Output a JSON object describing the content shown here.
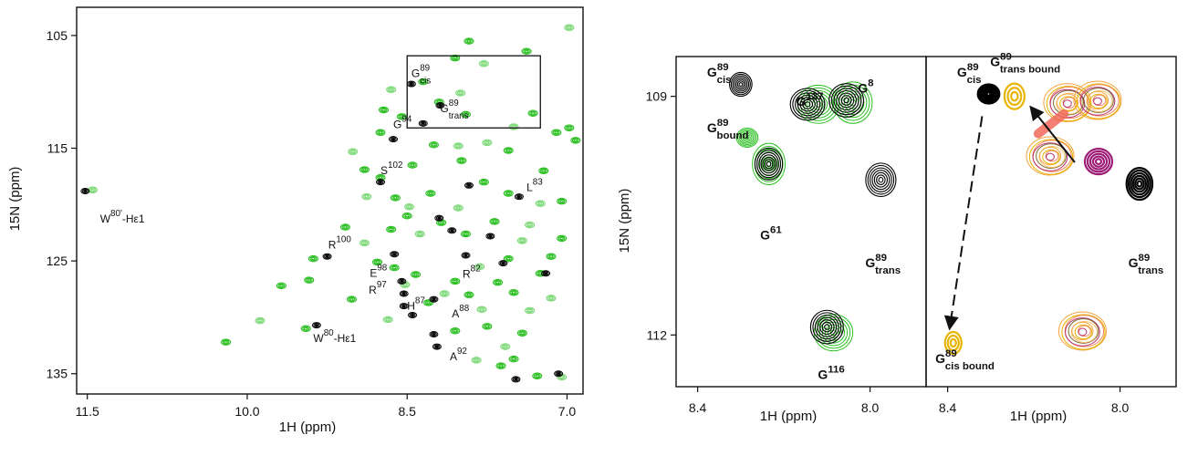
{
  "colors": {
    "free": "#000000",
    "bound": "#2bbf22",
    "bound_light": "#7fd97a",
    "trans_bound": "#e8b400",
    "cis_bound": "#e8b400",
    "magenta": "#9c1c74",
    "salmon": "#f26b5b",
    "orange": "#f4a340"
  },
  "chart_data": [
    {
      "type": "scatter",
      "panel": "left",
      "xlabel": "1H (ppm)",
      "ylabel": "15N (ppm)",
      "xlim": [
        11.6,
        6.85
      ],
      "ylim": [
        102.5,
        136.8
      ],
      "x_ticks": [
        {
          "value": 11.5,
          "label": "11.5"
        },
        {
          "value": 10.0,
          "label": "10.0"
        },
        {
          "value": 8.5,
          "label": "8.5"
        },
        {
          "value": 7.0,
          "label": "7.0"
        }
      ],
      "y_ticks": [
        {
          "value": 105,
          "label": "105"
        },
        {
          "value": 115,
          "label": "115"
        },
        {
          "value": 125,
          "label": "125"
        },
        {
          "value": 135,
          "label": "135"
        }
      ],
      "inset_box": {
        "x": [
          8.5,
          7.25
        ],
        "y": [
          106.8,
          113.2
        ]
      },
      "annotations": [
        {
          "res": "G",
          "sup": "89",
          "sub": "cis",
          "x": 8.46,
          "y": 108.7
        },
        {
          "res": "G",
          "sup": "89",
          "sub": "trans",
          "x": 8.19,
          "y": 111.8
        },
        {
          "res": "G",
          "sup": "94",
          "x": 8.63,
          "y": 113.2
        },
        {
          "res": "S",
          "sup": "102",
          "x": 8.75,
          "y": 117.3
        },
        {
          "res": "L",
          "sup": "83",
          "x": 7.38,
          "y": 118.8
        },
        {
          "res": "W",
          "sup": "80'",
          "post": "-Hε1",
          "x": 11.38,
          "y": 121.6
        },
        {
          "res": "R",
          "sup": "100",
          "x": 9.24,
          "y": 123.9
        },
        {
          "res": "E",
          "sup": "98",
          "x": 8.85,
          "y": 126.4
        },
        {
          "res": "R",
          "sup": "97",
          "x": 8.86,
          "y": 127.9
        },
        {
          "res": "H",
          "sup": "87",
          "x": 8.5,
          "y": 129.3
        },
        {
          "res": "R",
          "sup": "82",
          "x": 7.98,
          "y": 126.5
        },
        {
          "res": "A",
          "sup": "88",
          "x": 8.08,
          "y": 130.0
        },
        {
          "res": "W",
          "sup": "80",
          "post": "-Hε1",
          "x": 9.38,
          "y": 132.2
        },
        {
          "res": "A",
          "sup": "92",
          "x": 8.1,
          "y": 133.8
        }
      ],
      "free_peaks": [
        [
          8.46,
          109.3
        ],
        [
          8.19,
          111.2
        ],
        [
          8.35,
          112.8
        ],
        [
          8.63,
          114.2
        ],
        [
          8.75,
          118.0
        ],
        [
          7.92,
          118.3
        ],
        [
          7.45,
          119.3
        ],
        [
          11.52,
          118.8
        ],
        [
          9.25,
          124.6
        ],
        [
          8.62,
          124.4
        ],
        [
          8.55,
          126.8
        ],
        [
          8.53,
          127.9
        ],
        [
          8.53,
          129.0
        ],
        [
          8.45,
          129.8
        ],
        [
          8.25,
          128.4
        ],
        [
          9.35,
          130.7
        ],
        [
          8.25,
          131.5
        ],
        [
          8.22,
          132.6
        ],
        [
          7.6,
          125.2
        ],
        [
          7.2,
          126.1
        ],
        [
          7.08,
          135.0
        ],
        [
          7.48,
          135.5
        ],
        [
          8.08,
          122.3
        ],
        [
          7.72,
          122.8
        ],
        [
          7.95,
          124.5
        ],
        [
          8.2,
          121.2
        ]
      ],
      "bound_peaks": [
        [
          6.98,
          104.3
        ],
        [
          7.92,
          105.5
        ],
        [
          7.38,
          106.4
        ],
        [
          7.78,
          107.5
        ],
        [
          8.05,
          107.0
        ],
        [
          8.35,
          109.1
        ],
        [
          8.0,
          110.1
        ],
        [
          8.2,
          110.9
        ],
        [
          7.95,
          112.0
        ],
        [
          7.5,
          113.1
        ],
        [
          7.32,
          111.9
        ],
        [
          7.1,
          113.6
        ],
        [
          8.65,
          109.8
        ],
        [
          8.55,
          112.2
        ],
        [
          8.75,
          113.6
        ],
        [
          9.01,
          115.3
        ],
        [
          8.9,
          116.9
        ],
        [
          8.25,
          114.7
        ],
        [
          8.02,
          114.8
        ],
        [
          8.75,
          117.6
        ],
        [
          8.61,
          119.4
        ],
        [
          8.48,
          120.2
        ],
        [
          8.28,
          119.0
        ],
        [
          7.99,
          116.1
        ],
        [
          7.75,
          114.5
        ],
        [
          7.55,
          115.2
        ],
        [
          7.22,
          117.0
        ],
        [
          11.45,
          118.7
        ],
        [
          9.38,
          124.8
        ],
        [
          9.08,
          122.0
        ],
        [
          8.9,
          123.4
        ],
        [
          8.78,
          125.1
        ],
        [
          8.62,
          125.6
        ],
        [
          8.52,
          127.1
        ],
        [
          8.42,
          126.2
        ],
        [
          8.3,
          128.7
        ],
        [
          8.15,
          127.9
        ],
        [
          8.05,
          126.8
        ],
        [
          7.92,
          128.0
        ],
        [
          7.8,
          129.3
        ],
        [
          7.65,
          126.9
        ],
        [
          7.5,
          127.8
        ],
        [
          7.35,
          129.4
        ],
        [
          7.25,
          126.1
        ],
        [
          7.55,
          124.8
        ],
        [
          7.42,
          123.2
        ],
        [
          7.15,
          124.6
        ],
        [
          7.05,
          123.0
        ],
        [
          7.82,
          125.5
        ],
        [
          7.95,
          122.6
        ],
        [
          7.68,
          121.5
        ],
        [
          7.25,
          119.9
        ],
        [
          7.05,
          119.7
        ],
        [
          8.18,
          121.6
        ],
        [
          8.38,
          122.6
        ],
        [
          8.5,
          121.0
        ],
        [
          8.65,
          122.2
        ],
        [
          8.02,
          120.3
        ],
        [
          7.78,
          118.0
        ],
        [
          7.55,
          119.0
        ],
        [
          7.35,
          121.8
        ],
        [
          9.45,
          131.0
        ],
        [
          10.2,
          132.2
        ],
        [
          9.88,
          130.3
        ],
        [
          9.42,
          126.7
        ],
        [
          9.02,
          128.4
        ],
        [
          8.68,
          130.2
        ],
        [
          8.05,
          131.2
        ],
        [
          7.75,
          130.8
        ],
        [
          7.58,
          132.6
        ],
        [
          7.5,
          133.7
        ],
        [
          7.28,
          135.2
        ],
        [
          7.05,
          135.3
        ],
        [
          6.98,
          113.2
        ],
        [
          6.92,
          114.3
        ],
        [
          7.15,
          128.3
        ],
        [
          7.42,
          131.4
        ],
        [
          9.68,
          127.2
        ],
        [
          8.88,
          119.3
        ],
        [
          8.45,
          116.5
        ],
        [
          8.72,
          111.6
        ],
        [
          7.85,
          133.8
        ],
        [
          7.62,
          134.3
        ]
      ]
    },
    {
      "type": "scatter",
      "panel": "middle",
      "xlabel": "1H (ppm)",
      "ylabel": "15N (ppm)",
      "xlim": [
        8.45,
        7.87
      ],
      "ylim": [
        108.5,
        112.65
      ],
      "x_ticks": [
        {
          "value": 8.4,
          "label": "8.4"
        },
        {
          "value": 8.0,
          "label": "8.0"
        }
      ],
      "y_ticks": [
        {
          "value": 109,
          "label": "109"
        },
        {
          "value": 112,
          "label": "112"
        }
      ],
      "annotations": [
        {
          "res": "G",
          "sup": "89",
          "sub": "cis",
          "x": 8.35,
          "y": 108.75,
          "color": "free"
        },
        {
          "res": "G",
          "sup": "137",
          "x": 8.14,
          "y": 109.12,
          "color": "free"
        },
        {
          "res": "G",
          "sup": "8",
          "x": 8.01,
          "y": 108.95,
          "color": "free"
        },
        {
          "res": "G",
          "sup": "89",
          "sub": "bound",
          "x": 8.33,
          "y": 109.45,
          "color": "bound"
        },
        {
          "res": "G",
          "sup": "61",
          "x": 8.23,
          "y": 110.8,
          "color": "free"
        },
        {
          "res": "G",
          "sup": "89",
          "sub": "trans",
          "x": 7.97,
          "y": 111.15,
          "color": "free"
        },
        {
          "res": "G",
          "sup": "116",
          "x": 8.09,
          "y": 112.55,
          "color": "free"
        }
      ],
      "free_peaks": [
        {
          "x": 8.3,
          "y": 108.85,
          "rx": 0.026,
          "ry": 0.15
        },
        {
          "x": 8.145,
          "y": 109.1,
          "rx": 0.04,
          "ry": 0.2
        },
        {
          "x": 8.055,
          "y": 109.05,
          "rx": 0.04,
          "ry": 0.21
        },
        {
          "x": 8.235,
          "y": 109.85,
          "rx": 0.032,
          "ry": 0.2
        },
        {
          "x": 7.975,
          "y": 110.05,
          "rx": 0.035,
          "ry": 0.21
        },
        {
          "x": 8.1,
          "y": 111.9,
          "rx": 0.038,
          "ry": 0.21
        }
      ],
      "bound_peaks": [
        {
          "x": 8.12,
          "y": 109.1,
          "rx": 0.048,
          "ry": 0.24
        },
        {
          "x": 8.04,
          "y": 109.08,
          "rx": 0.045,
          "ry": 0.26
        },
        {
          "x": 8.235,
          "y": 109.85,
          "rx": 0.038,
          "ry": 0.26
        },
        {
          "x": 8.285,
          "y": 109.52,
          "rx": 0.025,
          "ry": 0.12
        },
        {
          "x": 8.085,
          "y": 111.97,
          "rx": 0.045,
          "ry": 0.23
        }
      ]
    },
    {
      "type": "scatter",
      "panel": "right",
      "xlabel": "1H (ppm)",
      "xlim": [
        8.45,
        7.87
      ],
      "ylim": [
        108.5,
        112.65
      ],
      "x_ticks": [
        {
          "value": 8.4,
          "label": "8.4"
        },
        {
          "value": 8.0,
          "label": "8.0"
        }
      ],
      "annotations": [
        {
          "res": "G",
          "sup": "89",
          "sub": "cis",
          "x": 8.35,
          "y": 108.75,
          "color": "free"
        },
        {
          "res": "G",
          "sup": "89",
          "sub": "trans bound",
          "x": 8.22,
          "y": 108.62,
          "color": "trans_bound"
        },
        {
          "res": "G",
          "sup": "89",
          "sub": "trans",
          "x": 7.94,
          "y": 111.15,
          "color": "free"
        },
        {
          "res": "G",
          "sup": "89",
          "sub": "cis bound",
          "x": 8.36,
          "y": 112.35,
          "color": "cis_bound"
        }
      ],
      "free_peaks": [
        {
          "x": 8.305,
          "y": 108.97,
          "rx": 0.025,
          "ry": 0.12
        },
        {
          "x": 7.955,
          "y": 110.1,
          "rx": 0.03,
          "ry": 0.2
        }
      ],
      "trans_bound_peak": {
        "x": 8.245,
        "y": 109.0
      },
      "cis_bound_peak": {
        "x": 8.387,
        "y": 112.1
      },
      "arrows": [
        {
          "from": [
            8.32,
            109.25
          ],
          "to": [
            8.395,
            111.9
          ],
          "dashed": true
        },
        {
          "from": [
            8.105,
            109.83
          ],
          "to": [
            8.205,
            109.15
          ],
          "dashed": false
        }
      ],
      "cluster_peaks": [
        {
          "x": 8.12,
          "y": 109.08
        },
        {
          "x": 8.05,
          "y": 109.05
        },
        {
          "x": 8.16,
          "y": 109.75
        },
        {
          "x": 8.085,
          "y": 111.95
        }
      ],
      "magenta_peak": {
        "x": 8.05,
        "y": 109.82
      },
      "salmon_streak": {
        "from": [
          8.19,
          109.47
        ],
        "to": [
          8.13,
          109.22
        ]
      }
    }
  ]
}
